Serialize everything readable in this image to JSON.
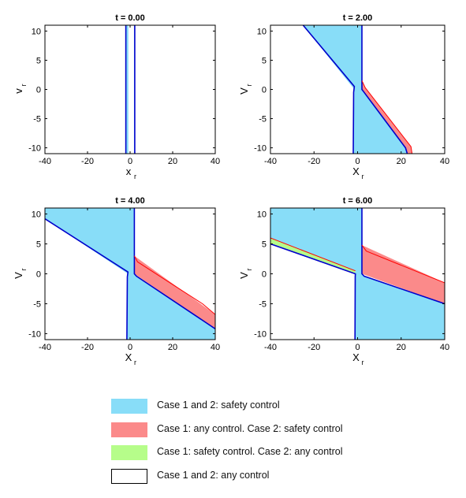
{
  "chart_data": [
    {
      "type": "area",
      "title": "t = 0.00",
      "xlabel": "x",
      "xlabel_sub": "r",
      "ylabel": "v",
      "ylabel_sub": "r",
      "xlim": [
        -40,
        40
      ],
      "ylim": [
        -11,
        11
      ],
      "xticks": [
        -40,
        -20,
        0,
        20,
        40
      ],
      "yticks": [
        -10,
        -5,
        0,
        5,
        10
      ],
      "regions": [
        {
          "kind": "blue",
          "points": [
            [
              -2.0,
              -11
            ],
            [
              -2.0,
              11
            ],
            [
              2.2,
              11
            ],
            [
              2.2,
              -11
            ]
          ]
        },
        {
          "kind": "white",
          "points": [
            [
              -0.8,
              -11
            ],
            [
              -0.8,
              11
            ],
            [
              1.8,
              11
            ],
            [
              1.8,
              -11
            ]
          ]
        }
      ],
      "lines": [
        {
          "color": "#0000cc",
          "width": 1.6,
          "points": [
            [
              -2.0,
              -11
            ],
            [
              -2.0,
              11
            ]
          ]
        },
        {
          "color": "#0000cc",
          "width": 1.6,
          "points": [
            [
              2.2,
              -11
            ],
            [
              2.2,
              11
            ]
          ]
        }
      ]
    },
    {
      "type": "area",
      "title": "t = 2.00",
      "xlabel": "X",
      "xlabel_sub": "r",
      "ylabel": "V",
      "ylabel_sub": "r",
      "xlim": [
        -40,
        40
      ],
      "ylim": [
        -11,
        11
      ],
      "xticks": [
        -40,
        -20,
        0,
        20,
        40
      ],
      "yticks": [
        -10,
        -5,
        0,
        5,
        10
      ],
      "regions": [
        {
          "kind": "red",
          "points": [
            [
              2,
              1.5
            ],
            [
              2,
              0
            ],
            [
              22,
              -10
            ],
            [
              22.8,
              -11
            ],
            [
              25,
              -11
            ],
            [
              24.5,
              -9.8
            ],
            [
              3.5,
              0.3
            ],
            [
              2,
              1.5
            ]
          ]
        },
        {
          "kind": "blue",
          "points": [
            [
              -25,
              11
            ],
            [
              -1.5,
              0
            ],
            [
              -2,
              -11
            ],
            [
              22.8,
              -11
            ],
            [
              22,
              -10
            ],
            [
              3,
              -0.5
            ],
            [
              2,
              0
            ],
            [
              2,
              11
            ]
          ]
        }
      ],
      "lines": [
        {
          "color": "#0000cc",
          "width": 1.6,
          "points": [
            [
              -25,
              11
            ],
            [
              -1.5,
              0.5
            ],
            [
              -1.8,
              -0.5
            ],
            [
              -2,
              -11
            ]
          ]
        },
        {
          "color": "#0000cc",
          "width": 1.6,
          "points": [
            [
              2,
              11
            ],
            [
              2,
              0
            ],
            [
              3,
              -0.5
            ],
            [
              22,
              -10
            ],
            [
              22.8,
              -11
            ]
          ]
        },
        {
          "color": "#ff0000",
          "width": 1.0,
          "points": [
            [
              2,
              1.5
            ],
            [
              3.5,
              0.3
            ],
            [
              24.5,
              -9.8
            ],
            [
              25,
              -11
            ]
          ]
        }
      ]
    },
    {
      "type": "area",
      "title": "t = 4.00",
      "xlabel": "X",
      "xlabel_sub": "r",
      "ylabel": "V",
      "ylabel_sub": "r",
      "xlim": [
        -40,
        40
      ],
      "ylim": [
        -11,
        11
      ],
      "xticks": [
        -40,
        -20,
        0,
        20,
        40
      ],
      "yticks": [
        -10,
        -5,
        0,
        5,
        10
      ],
      "regions": [
        {
          "kind": "red",
          "points": [
            [
              2,
              3
            ],
            [
              2,
              0
            ],
            [
              40,
              -9.2
            ],
            [
              40,
              -6.8
            ],
            [
              2,
              3
            ]
          ]
        },
        {
          "kind": "blue",
          "points": [
            [
              -40,
              11
            ],
            [
              -40,
              9.2
            ],
            [
              -1,
              0
            ],
            [
              -1.5,
              -11
            ],
            [
              40,
              -11
            ],
            [
              40,
              -9.2
            ],
            [
              3,
              -0.3
            ],
            [
              2,
              0
            ],
            [
              2,
              11
            ]
          ]
        }
      ],
      "lines": [
        {
          "color": "#0000cc",
          "width": 1.6,
          "points": [
            [
              -40,
              9.2
            ],
            [
              -1,
              0.3
            ],
            [
              -1.3,
              -0.5
            ],
            [
              -1.5,
              -11
            ]
          ]
        },
        {
          "color": "#0000cc",
          "width": 1.6,
          "points": [
            [
              2,
              11
            ],
            [
              2,
              0
            ],
            [
              3,
              -0.4
            ],
            [
              40,
              -9.2
            ]
          ]
        },
        {
          "color": "#ff0000",
          "width": 1.0,
          "points": [
            [
              2,
              3
            ],
            [
              3.5,
              2
            ],
            [
              34,
              -5
            ],
            [
              40,
              -6.8
            ]
          ]
        }
      ]
    },
    {
      "type": "area",
      "title": "t = 6.00",
      "xlabel": "X",
      "xlabel_sub": "r",
      "ylabel": "V",
      "ylabel_sub": "r",
      "xlim": [
        -40,
        40
      ],
      "ylim": [
        -11,
        11
      ],
      "xticks": [
        -40,
        -20,
        0,
        20,
        40
      ],
      "yticks": [
        -10,
        -5,
        0,
        5,
        10
      ],
      "regions": [
        {
          "kind": "green",
          "points": [
            [
              -40,
              6
            ],
            [
              -1,
              0.5
            ],
            [
              -1,
              0
            ],
            [
              -40,
              5
            ],
            [
              -40,
              6
            ]
          ]
        },
        {
          "kind": "red",
          "points": [
            [
              2,
              4.8
            ],
            [
              2,
              0
            ],
            [
              40,
              -5
            ],
            [
              40,
              -1.5
            ],
            [
              2,
              4.8
            ]
          ]
        },
        {
          "kind": "blue",
          "points": [
            [
              -40,
              11
            ],
            [
              -40,
              6
            ],
            [
              -1,
              0.5
            ],
            [
              -1.2,
              -11
            ],
            [
              40,
              -11
            ],
            [
              40,
              -5
            ],
            [
              3,
              -0.3
            ],
            [
              2,
              0
            ],
            [
              2,
              11
            ]
          ]
        }
      ],
      "lines": [
        {
          "color": "#ff0000",
          "width": 1.0,
          "points": [
            [
              -40,
              6
            ],
            [
              -1,
              0.5
            ]
          ]
        },
        {
          "color": "#0000cc",
          "width": 1.6,
          "points": [
            [
              -40,
              5
            ],
            [
              -1,
              0
            ],
            [
              -1.1,
              -0.5
            ],
            [
              -1.2,
              -11
            ]
          ]
        },
        {
          "color": "#0000cc",
          "width": 1.6,
          "points": [
            [
              2,
              11
            ],
            [
              2,
              0
            ],
            [
              3,
              -0.4
            ],
            [
              40,
              -5
            ]
          ]
        },
        {
          "color": "#ff0000",
          "width": 1.0,
          "points": [
            [
              2,
              4.8
            ],
            [
              4,
              3.8
            ],
            [
              40,
              -1.5
            ]
          ]
        }
      ]
    }
  ],
  "colors": {
    "blue": "#88ddf8",
    "red": "#fb8a8a",
    "green": "#b6fd8a",
    "white": "#ffffff",
    "boundary_blue": "#0000cc",
    "boundary_red": "#ff0000"
  },
  "legend": [
    {
      "kind": "blue",
      "label": "Case 1 and 2: safety control"
    },
    {
      "kind": "red",
      "label": "Case 1: any control. Case 2: safety control"
    },
    {
      "kind": "green",
      "label": "Case 1: safety control. Case 2: any control"
    },
    {
      "kind": "white",
      "label": "Case 1 and 2: any control"
    }
  ]
}
